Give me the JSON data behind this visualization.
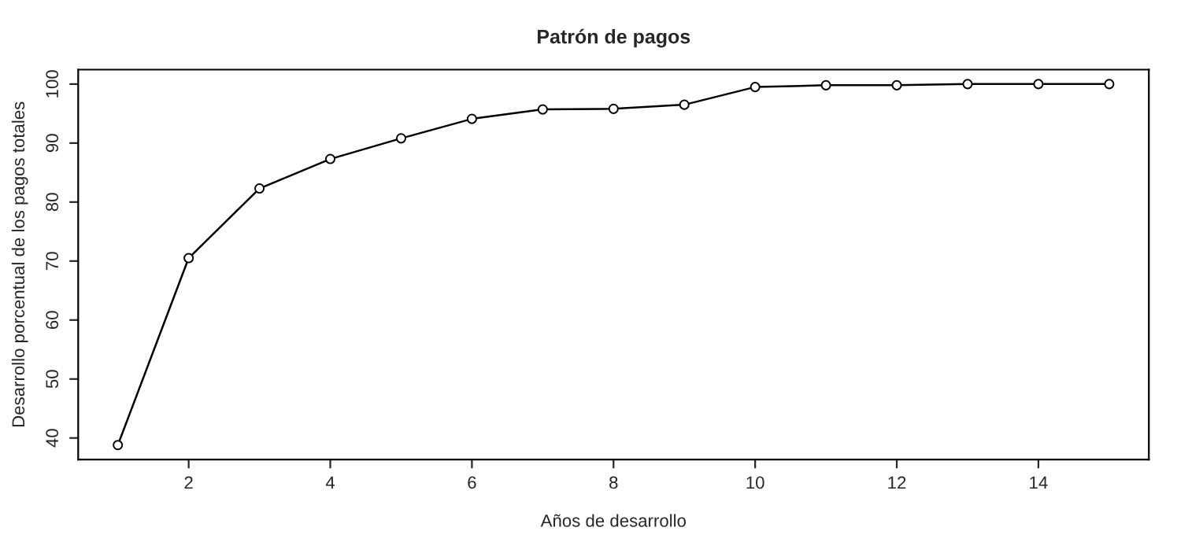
{
  "chart_data": {
    "type": "line",
    "title": "Patrón de pagos",
    "xlabel": "Años de desarrollo",
    "ylabel": "Desarrollo porcentual de los pagos totales",
    "x": [
      1,
      2,
      3,
      4,
      5,
      6,
      7,
      8,
      9,
      10,
      11,
      12,
      13,
      14,
      15
    ],
    "series": [
      {
        "color": "#000000",
        "values": [
          38.8,
          70.5,
          82.3,
          87.3,
          90.8,
          94.1,
          95.7,
          95.8,
          96.5,
          99.5,
          99.8,
          99.8,
          100,
          100,
          100
        ]
      }
    ],
    "xlim": [
      0.44,
      15.56
    ],
    "ylim": [
      36.35,
      102.45
    ],
    "xticks": [
      2,
      4,
      6,
      8,
      10,
      12,
      14
    ],
    "yticks": [
      40,
      50,
      60,
      70,
      80,
      90,
      100
    ],
    "grid": false,
    "legend": false,
    "marker": "circle",
    "line_style": "solid"
  }
}
